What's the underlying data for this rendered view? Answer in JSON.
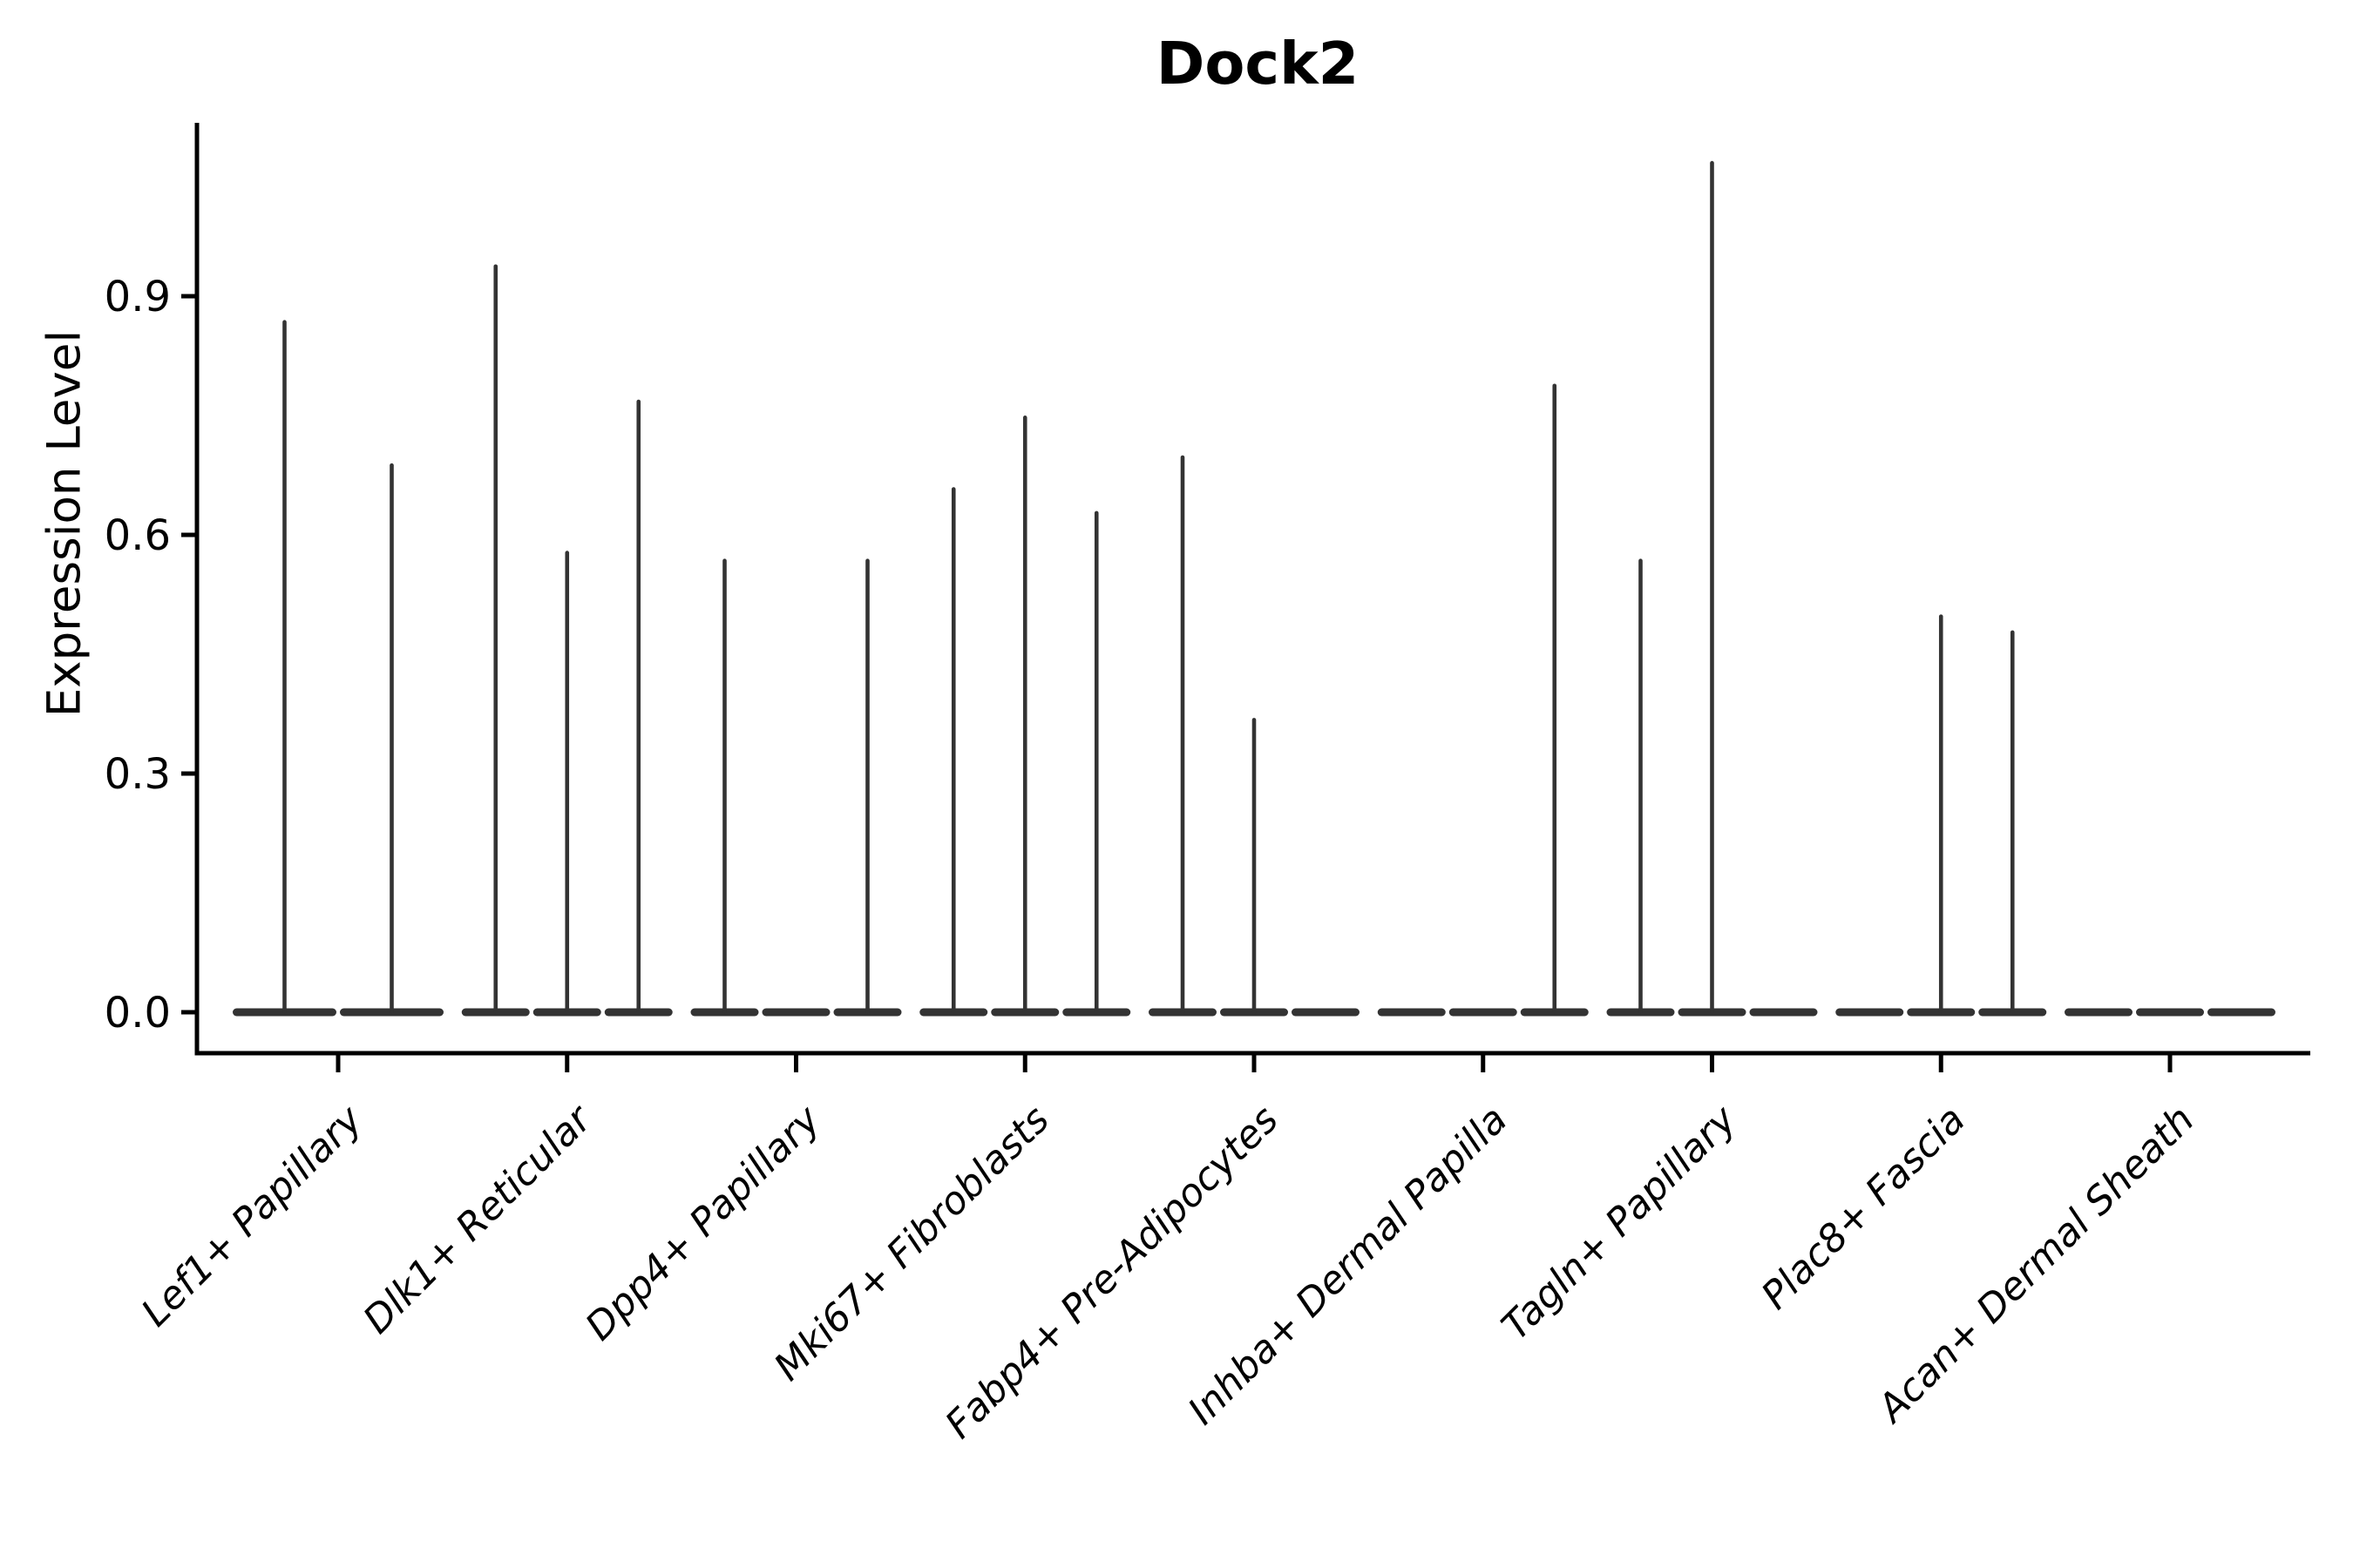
{
  "chart_data": {
    "type": "violin",
    "title": "Dock2",
    "ylabel": "Expression Level",
    "xlabel": "",
    "ylim": [
      0,
      1.12
    ],
    "yticks": [
      {
        "label": "0.0",
        "value": 0.0
      },
      {
        "label": "0.3",
        "value": 0.3
      },
      {
        "label": "0.6",
        "value": 0.6
      },
      {
        "label": "0.9",
        "value": 0.9
      }
    ],
    "grid": false,
    "legend": false,
    "x_label_rotation_deg": 45,
    "x_label_style": "italic",
    "categories": [
      {
        "label": "Lef1+ Papillary",
        "violins": 2,
        "spikes": [
          {
            "violin": 0,
            "value": 0.87
          },
          {
            "violin": 1,
            "value": 0.69
          }
        ]
      },
      {
        "label": "Dlk1+ Reticular",
        "violins": 3,
        "spikes": [
          {
            "violin": 0,
            "value": 0.94
          },
          {
            "violin": 1,
            "value": 0.58
          },
          {
            "violin": 2,
            "value": 0.77
          }
        ]
      },
      {
        "label": "Dpp4+ Papillary",
        "violins": 3,
        "spikes": [
          {
            "violin": 0,
            "value": 0.57
          },
          {
            "violin": 2,
            "value": 0.57
          }
        ]
      },
      {
        "label": "Mki67+ Fibroblasts",
        "violins": 3,
        "spikes": [
          {
            "violin": 0,
            "value": 0.66
          },
          {
            "violin": 1,
            "value": 0.75
          },
          {
            "violin": 2,
            "value": 0.63
          }
        ]
      },
      {
        "label": "Fabp4+ Pre-Adipocytes",
        "violins": 3,
        "spikes": [
          {
            "violin": 0,
            "value": 0.7
          },
          {
            "violin": 1,
            "value": 0.37
          }
        ]
      },
      {
        "label": "Inhba+ Dermal Papilla",
        "violins": 3,
        "spikes": [
          {
            "violin": 2,
            "value": 0.79
          }
        ]
      },
      {
        "label": "Tagln+ Papillary",
        "violins": 3,
        "spikes": [
          {
            "violin": 0,
            "value": 0.57
          },
          {
            "violin": 1,
            "value": 1.07
          }
        ]
      },
      {
        "label": "Plac8+ Fascia",
        "violins": 3,
        "spikes": [
          {
            "violin": 1,
            "value": 0.5
          },
          {
            "violin": 2,
            "value": 0.48
          }
        ]
      },
      {
        "label": "Acan+ Dermal Sheath",
        "violins": 3,
        "spikes": []
      }
    ],
    "colors": {
      "axis": "#000000",
      "violin": "#333333",
      "text": "#000000",
      "background": "#ffffff"
    }
  }
}
